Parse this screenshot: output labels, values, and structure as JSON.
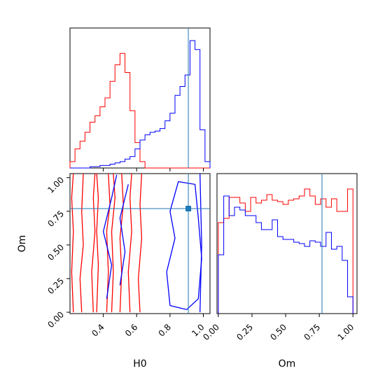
{
  "chart_data": {
    "type": "corner",
    "parameters": [
      "H0",
      "Om"
    ],
    "truth": {
      "H0": 0.91,
      "Om": 0.77
    },
    "colors": {
      "red_sample": "#ff0000",
      "blue_sample": "#0000ff",
      "truth_line": "#1f77b4"
    },
    "axes": {
      "H0": {
        "label": "H0",
        "range": [
          0.2,
          1.04
        ],
        "ticks": [
          0.4,
          0.6,
          0.8,
          1.0
        ],
        "tick_labels": [
          "0.4",
          "0.6",
          "0.8",
          "1.0"
        ]
      },
      "Om": {
        "label": "Om",
        "range": [
          -0.01,
          1.03
        ],
        "ticks": [
          0.0,
          0.25,
          0.5,
          0.75,
          1.0
        ],
        "tick_labels": [
          "0.00",
          "0.25",
          "0.50",
          "0.75",
          "1.00"
        ]
      }
    },
    "hist_H0": {
      "bin_edges": [
        0.2,
        0.23,
        0.26,
        0.29,
        0.32,
        0.35,
        0.38,
        0.41,
        0.44,
        0.47,
        0.5,
        0.53,
        0.56,
        0.59,
        0.62,
        0.65,
        0.68,
        0.71,
        0.74,
        0.77,
        0.8,
        0.83,
        0.86,
        0.89,
        0.92,
        0.95,
        0.98,
        1.01,
        1.04
      ],
      "series": [
        {
          "color": "red",
          "values": [
            0.05,
            0.15,
            0.21,
            0.28,
            0.36,
            0.41,
            0.48,
            0.55,
            0.68,
            0.81,
            0.9,
            0.75,
            0.45,
            0.2,
            0.05,
            0,
            0,
            0,
            0,
            0,
            0,
            0,
            0,
            0,
            0,
            0,
            0,
            0
          ]
        },
        {
          "color": "blue",
          "values": [
            0,
            0,
            0,
            0,
            0.01,
            0.01,
            0.02,
            0.02,
            0.03,
            0.04,
            0.05,
            0.07,
            0.09,
            0.15,
            0.22,
            0.26,
            0.28,
            0.29,
            0.31,
            0.37,
            0.43,
            0.57,
            0.64,
            0.73,
            1.0,
            0.93,
            0.3,
            0.05
          ]
        }
      ]
    },
    "hist_Om": {
      "bin_edges": [
        0.0,
        0.04,
        0.08,
        0.12,
        0.16,
        0.2,
        0.24,
        0.28,
        0.32,
        0.36,
        0.4,
        0.44,
        0.48,
        0.52,
        0.56,
        0.6,
        0.64,
        0.68,
        0.72,
        0.76,
        0.8,
        0.84,
        0.88,
        0.92,
        0.96,
        1.0
      ],
      "series": [
        {
          "color": "red",
          "values": [
            0.65,
            0.68,
            0.83,
            0.83,
            0.79,
            0.73,
            0.83,
            0.79,
            0.81,
            0.85,
            0.81,
            0.8,
            0.78,
            0.81,
            0.82,
            0.84,
            0.89,
            0.84,
            0.78,
            0.82,
            0.76,
            0.82,
            0.73,
            0.73,
            0.89
          ]
        },
        {
          "color": "blue",
          "values": [
            0.42,
            0.84,
            0.7,
            0.76,
            0.74,
            0.7,
            0.7,
            0.65,
            0.6,
            0.6,
            0.67,
            0.55,
            0.53,
            0.53,
            0.51,
            0.5,
            0.48,
            0.52,
            0.51,
            0.48,
            0.58,
            0.46,
            0.48,
            0.38,
            0.12
          ]
        }
      ]
    },
    "contours_2d": {
      "red": [
        [
          [
            0.22,
            0.0
          ],
          [
            0.21,
            0.3
          ],
          [
            0.22,
            0.6
          ],
          [
            0.21,
            0.85
          ],
          [
            0.22,
            1.03
          ]
        ],
        [
          [
            0.27,
            0.0
          ],
          [
            0.26,
            0.25
          ],
          [
            0.28,
            0.5
          ],
          [
            0.27,
            0.75
          ],
          [
            0.28,
            1.03
          ]
        ],
        [
          [
            0.34,
            0.0
          ],
          [
            0.33,
            0.3
          ],
          [
            0.35,
            0.6
          ],
          [
            0.34,
            0.85
          ],
          [
            0.35,
            1.03
          ]
        ],
        [
          [
            0.36,
            0.0
          ],
          [
            0.37,
            0.35
          ],
          [
            0.36,
            0.6
          ],
          [
            0.37,
            0.85
          ],
          [
            0.36,
            1.03
          ]
        ],
        [
          [
            0.42,
            0.0
          ],
          [
            0.43,
            0.3
          ],
          [
            0.42,
            0.6
          ],
          [
            0.44,
            0.8
          ],
          [
            0.43,
            1.03
          ]
        ],
        [
          [
            0.45,
            0.0
          ],
          [
            0.46,
            0.3
          ],
          [
            0.45,
            0.6
          ],
          [
            0.47,
            0.85
          ],
          [
            0.46,
            1.03
          ]
        ],
        [
          [
            0.5,
            0.0
          ],
          [
            0.51,
            0.3
          ],
          [
            0.5,
            0.55
          ],
          [
            0.52,
            0.8
          ],
          [
            0.51,
            1.03
          ]
        ],
        [
          [
            0.56,
            0.0
          ],
          [
            0.55,
            0.3
          ],
          [
            0.57,
            0.6
          ],
          [
            0.56,
            0.85
          ],
          [
            0.57,
            1.03
          ]
        ],
        [
          [
            0.62,
            0.0
          ],
          [
            0.61,
            0.25
          ],
          [
            0.63,
            0.55
          ],
          [
            0.62,
            0.8
          ],
          [
            0.63,
            1.03
          ]
        ]
      ],
      "blue": [
        [
          [
            0.42,
            0.1
          ],
          [
            0.45,
            0.35
          ],
          [
            0.4,
            0.6
          ],
          [
            0.45,
            0.85
          ],
          [
            0.48,
            1.02
          ]
        ],
        [
          [
            0.5,
            0.2
          ],
          [
            0.53,
            0.45
          ],
          [
            0.5,
            0.7
          ],
          [
            0.55,
            0.95
          ]
        ],
        [
          [
            0.8,
            0.05
          ],
          [
            0.78,
            0.3
          ],
          [
            0.83,
            0.55
          ],
          [
            0.8,
            0.75
          ],
          [
            0.85,
            0.97
          ],
          [
            0.95,
            0.95
          ],
          [
            0.97,
            0.7
          ],
          [
            0.99,
            0.4
          ],
          [
            0.97,
            0.1
          ],
          [
            0.9,
            0.02
          ],
          [
            0.8,
            0.05
          ]
        ],
        [
          [
            0.98,
            0.0
          ],
          [
            0.99,
            0.5
          ],
          [
            0.98,
            1.03
          ]
        ]
      ]
    }
  }
}
